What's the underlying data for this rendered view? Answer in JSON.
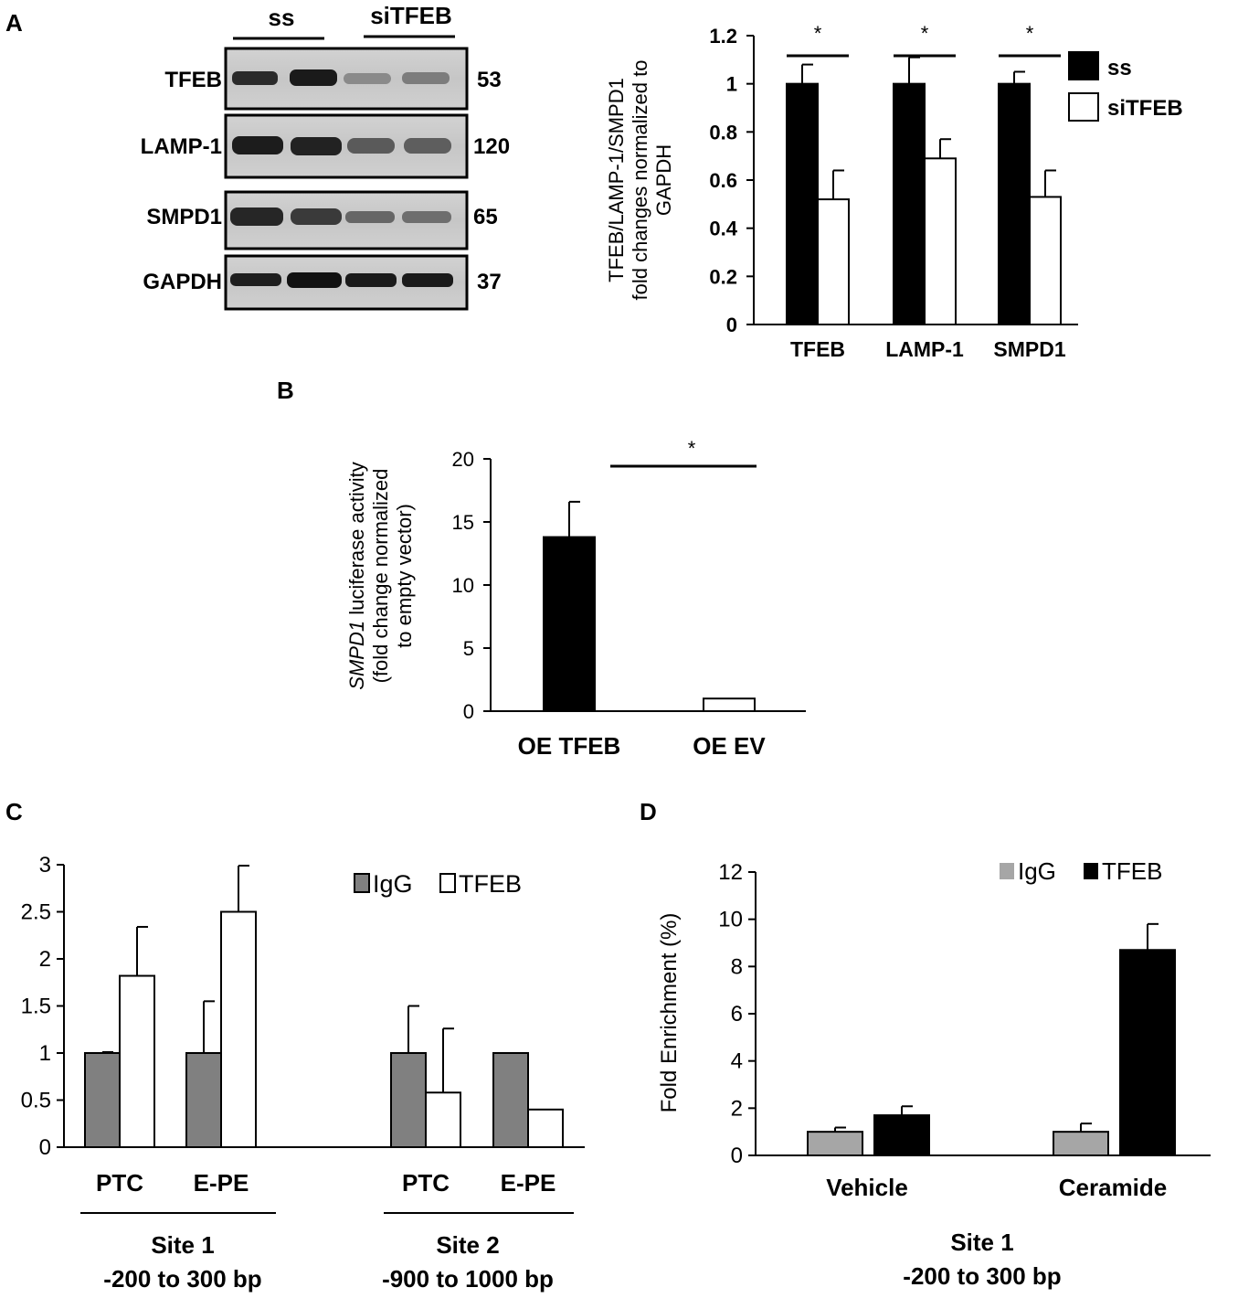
{
  "panel_labels": {
    "a": "A",
    "b": "B",
    "c": "C",
    "d": "D"
  },
  "colors": {
    "black": "#000000",
    "white": "#ffffff",
    "dark_gray": "#808080",
    "light_gray": "#a6a6a6"
  },
  "blot": {
    "group_ss": "ss",
    "group_si": "siTFEB",
    "rows": [
      {
        "protein": "TFEB",
        "kda": "53"
      },
      {
        "protein": "LAMP-1",
        "kda": "120"
      },
      {
        "protein": "SMPD1",
        "kda": "65"
      },
      {
        "protein": "GAPDH",
        "kda": "37"
      }
    ]
  },
  "chart_data": [
    {
      "id": "A",
      "type": "bar",
      "ylabel_lines": [
        "TFEB/LAMP-1/SMPD1",
        "fold changes normalized to",
        "GAPDH"
      ],
      "categories": [
        "TFEB",
        "LAMP-1",
        "SMPD1"
      ],
      "series": [
        {
          "name": "ss",
          "values": [
            1.0,
            1.0,
            1.0
          ],
          "errors": [
            0.08,
            0.11,
            0.05
          ],
          "fill": "#000000"
        },
        {
          "name": "siTFEB",
          "values": [
            0.52,
            0.69,
            0.53
          ],
          "errors": [
            0.12,
            0.08,
            0.11
          ],
          "fill": "#ffffff"
        }
      ],
      "ylim": [
        0,
        1.2
      ],
      "yticks": [
        "0",
        "0.2",
        "0.4",
        "0.6",
        "0.8",
        "1",
        "1.2"
      ],
      "significance": [
        "*",
        "*",
        "*"
      ],
      "legend": "right"
    },
    {
      "id": "B",
      "type": "bar",
      "ylabel_italic": "SMPD1",
      "ylabel_rest": " luciferase activity",
      "ylabel_lines": [
        "(fold change  normalized",
        "to empty vector)"
      ],
      "categories": [
        "OE  TFEB",
        "OE EV"
      ],
      "values": [
        13.8,
        1.0
      ],
      "errors": [
        2.8,
        0
      ],
      "fills": [
        "#000000",
        "#ffffff"
      ],
      "ylim": [
        0,
        20
      ],
      "yticks": [
        "0",
        "5",
        "10",
        "15",
        "20"
      ],
      "significance": "*"
    },
    {
      "id": "C",
      "type": "bar",
      "categories": [
        "PTC",
        "E-PE",
        "PTC",
        "E-PE"
      ],
      "series": [
        {
          "name": "IgG",
          "values": [
            1.0,
            1.0,
            1.0,
            1.0
          ],
          "errors": [
            0.01,
            0.55,
            0.5,
            0
          ],
          "fill": "#808080"
        },
        {
          "name": "TFEB",
          "values": [
            1.82,
            2.5,
            0.58,
            0.4
          ],
          "errors": [
            0.52,
            0.49,
            0.68,
            0
          ],
          "fill": "#ffffff"
        }
      ],
      "ylim": [
        0,
        3
      ],
      "yticks": [
        "0",
        "0.5",
        "1",
        "1.5",
        "2",
        "2.5",
        "3"
      ],
      "group_labels": [
        [
          "Site 1",
          "-200 to 300 bp"
        ],
        [
          "Site 2",
          "-900 to 1000 bp"
        ]
      ],
      "legend": "top-right"
    },
    {
      "id": "D",
      "type": "bar",
      "ylabel": "Fold Enrichment (%)",
      "categories": [
        "Vehicle",
        "Ceramide"
      ],
      "series": [
        {
          "name": "IgG",
          "values": [
            1.0,
            1.0
          ],
          "errors": [
            0.18,
            0.35
          ],
          "fill": "#a6a6a6"
        },
        {
          "name": "TFEB",
          "values": [
            1.7,
            8.7
          ],
          "errors": [
            0.38,
            1.1
          ],
          "fill": "#000000"
        }
      ],
      "ylim": [
        0,
        12
      ],
      "yticks": [
        "0",
        "2",
        "4",
        "6",
        "8",
        "10",
        "12"
      ],
      "group_label": [
        "Site 1",
        "-200 to 300 bp"
      ],
      "legend": "top-right"
    }
  ]
}
